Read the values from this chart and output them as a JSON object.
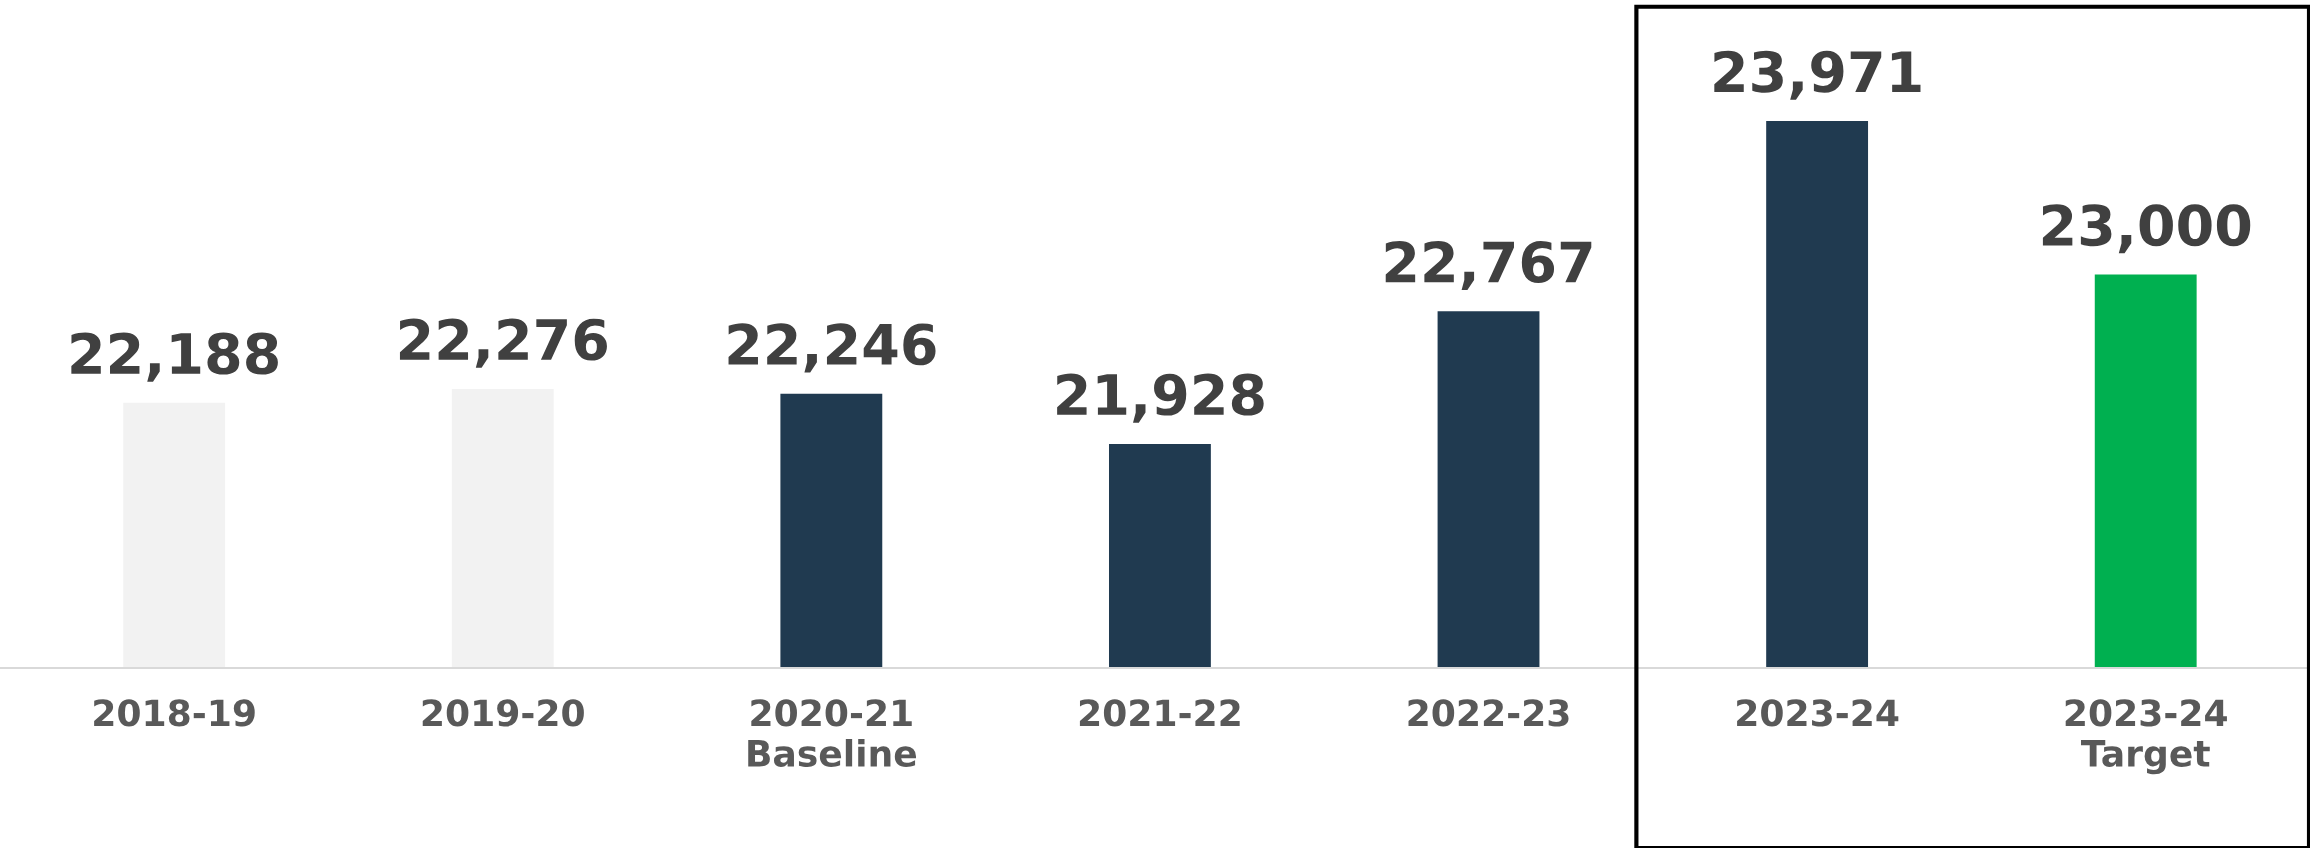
{
  "chart_data": {
    "type": "bar",
    "categories": [
      "2018-19",
      "2019-20",
      "2020-21\nBaseline",
      "2021-22",
      "2022-23",
      "2023-24",
      "2023-24\nTarget"
    ],
    "values": [
      22188,
      22276,
      22246,
      21928,
      22767,
      23971,
      23000
    ],
    "colors": [
      "#f2f2f2",
      "#f2f2f2",
      "#203a50",
      "#203a50",
      "#203a50",
      "#203a50",
      "#00b050"
    ],
    "value_labels": [
      "22,188",
      "22,276",
      "22,246",
      "21,928",
      "22,767",
      "23,971",
      "23,000"
    ],
    "ylim": [
      20510,
      23971
    ],
    "grid": false,
    "legend": false
  }
}
